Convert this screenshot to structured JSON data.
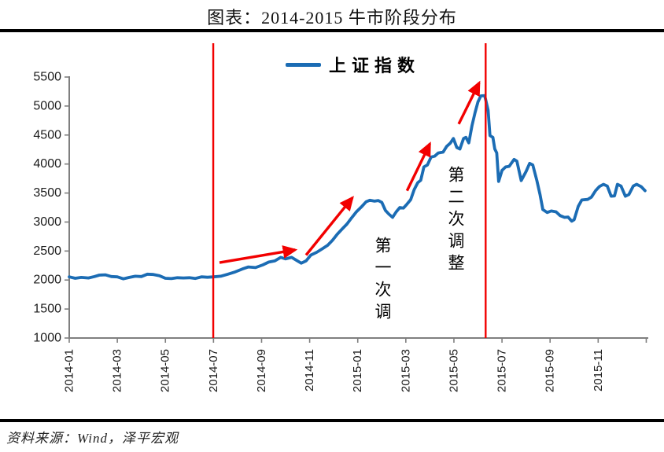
{
  "title": "图表：2014-2015 牛市阶段分布",
  "source": "资料来源：Wind，泽平宏观",
  "legend": {
    "label": "上证指数"
  },
  "colors": {
    "line_blue": "#1B6CB4",
    "marker_red": "#F20000",
    "axis_gray": "#7F7F7F",
    "tick_text": "#1A1A1A",
    "rule_black": "#000000"
  },
  "chart_data": {
    "type": "line",
    "title": "图表：2014-2015 牛市阶段分布",
    "x_unit": "months since 2014-01",
    "xlim": [
      0,
      24.1
    ],
    "ylim": [
      1000,
      5500
    ],
    "y_ticks": [
      1000,
      1500,
      2000,
      2500,
      3000,
      3500,
      4000,
      4500,
      5000,
      5500
    ],
    "x_tick_months": [
      0,
      2,
      4,
      6,
      8,
      10,
      12,
      14,
      16,
      18,
      20,
      22,
      24
    ],
    "x_tick_labels": [
      "2014-01",
      "2014-03",
      "2014-05",
      "2014-07",
      "2014-09",
      "2014-11",
      "2015-01",
      "2015-03",
      "2015-05",
      "2015-07",
      "2015-09",
      "2015-11",
      ""
    ],
    "grid": false,
    "legend_position": "top-center",
    "series": [
      {
        "name": "上证指数",
        "color": "#1B6CB4",
        "points": [
          [
            0,
            2055
          ],
          [
            0.25,
            2030
          ],
          [
            0.5,
            2045
          ],
          [
            0.8,
            2035
          ],
          [
            1.05,
            2060
          ],
          [
            1.25,
            2085
          ],
          [
            1.5,
            2090
          ],
          [
            1.75,
            2060
          ],
          [
            2.0,
            2055
          ],
          [
            2.25,
            2020
          ],
          [
            2.5,
            2045
          ],
          [
            2.75,
            2065
          ],
          [
            3.0,
            2060
          ],
          [
            3.25,
            2100
          ],
          [
            3.5,
            2095
          ],
          [
            3.75,
            2075
          ],
          [
            4.0,
            2030
          ],
          [
            4.25,
            2025
          ],
          [
            4.5,
            2040
          ],
          [
            4.75,
            2035
          ],
          [
            5.0,
            2040
          ],
          [
            5.25,
            2028
          ],
          [
            5.5,
            2055
          ],
          [
            5.75,
            2048
          ],
          [
            6.0,
            2055
          ],
          [
            6.3,
            2065
          ],
          [
            6.6,
            2100
          ],
          [
            6.9,
            2140
          ],
          [
            7.2,
            2190
          ],
          [
            7.45,
            2225
          ],
          [
            7.75,
            2215
          ],
          [
            8.05,
            2260
          ],
          [
            8.3,
            2310
          ],
          [
            8.55,
            2330
          ],
          [
            8.8,
            2390
          ],
          [
            9.0,
            2365
          ],
          [
            9.25,
            2390
          ],
          [
            9.45,
            2340
          ],
          [
            9.65,
            2290
          ],
          [
            9.85,
            2330
          ],
          [
            10.05,
            2430
          ],
          [
            10.3,
            2480
          ],
          [
            10.55,
            2545
          ],
          [
            10.75,
            2600
          ],
          [
            10.95,
            2685
          ],
          [
            11.15,
            2790
          ],
          [
            11.35,
            2880
          ],
          [
            11.55,
            2965
          ],
          [
            11.75,
            3075
          ],
          [
            11.95,
            3180
          ],
          [
            12.15,
            3260
          ],
          [
            12.35,
            3350
          ],
          [
            12.5,
            3375
          ],
          [
            12.7,
            3360
          ],
          [
            12.85,
            3370
          ],
          [
            13.0,
            3340
          ],
          [
            13.15,
            3200
          ],
          [
            13.3,
            3135
          ],
          [
            13.45,
            3080
          ],
          [
            13.6,
            3175
          ],
          [
            13.75,
            3250
          ],
          [
            13.9,
            3240
          ],
          [
            14.05,
            3310
          ],
          [
            14.2,
            3385
          ],
          [
            14.35,
            3560
          ],
          [
            14.5,
            3680
          ],
          [
            14.62,
            3720
          ],
          [
            14.75,
            3950
          ],
          [
            14.9,
            3985
          ],
          [
            15.05,
            4120
          ],
          [
            15.2,
            4135
          ],
          [
            15.35,
            4190
          ],
          [
            15.55,
            4205
          ],
          [
            15.7,
            4305
          ],
          [
            15.85,
            4360
          ],
          [
            15.98,
            4440
          ],
          [
            16.12,
            4285
          ],
          [
            16.25,
            4260
          ],
          [
            16.4,
            4440
          ],
          [
            16.5,
            4460
          ],
          [
            16.62,
            4365
          ],
          [
            16.75,
            4660
          ],
          [
            16.88,
            4890
          ],
          [
            17.0,
            5070
          ],
          [
            17.12,
            5175
          ],
          [
            17.28,
            5180
          ],
          [
            17.42,
            4930
          ],
          [
            17.5,
            4490
          ],
          [
            17.62,
            4460
          ],
          [
            17.7,
            4260
          ],
          [
            17.78,
            4190
          ],
          [
            17.86,
            3700
          ],
          [
            18.0,
            3890
          ],
          [
            18.15,
            3950
          ],
          [
            18.3,
            3960
          ],
          [
            18.5,
            4080
          ],
          [
            18.62,
            4050
          ],
          [
            18.8,
            3715
          ],
          [
            19.0,
            3870
          ],
          [
            19.15,
            4010
          ],
          [
            19.28,
            3985
          ],
          [
            19.45,
            3715
          ],
          [
            19.58,
            3475
          ],
          [
            19.7,
            3215
          ],
          [
            19.88,
            3165
          ],
          [
            20.05,
            3190
          ],
          [
            20.25,
            3175
          ],
          [
            20.42,
            3110
          ],
          [
            20.6,
            3080
          ],
          [
            20.75,
            3085
          ],
          [
            20.9,
            3015
          ],
          [
            21.0,
            3040
          ],
          [
            21.17,
            3270
          ],
          [
            21.32,
            3380
          ],
          [
            21.56,
            3390
          ],
          [
            21.72,
            3430
          ],
          [
            21.89,
            3540
          ],
          [
            22.05,
            3610
          ],
          [
            22.22,
            3650
          ],
          [
            22.38,
            3620
          ],
          [
            22.54,
            3445
          ],
          [
            22.68,
            3450
          ],
          [
            22.8,
            3650
          ],
          [
            22.95,
            3620
          ],
          [
            23.13,
            3445
          ],
          [
            23.28,
            3475
          ],
          [
            23.46,
            3620
          ],
          [
            23.6,
            3650
          ],
          [
            23.79,
            3610
          ],
          [
            23.95,
            3540
          ]
        ]
      }
    ],
    "vlines_months": [
      5.99,
      17.32
    ],
    "arrows": [
      {
        "from": [
          6.25,
          2300
        ],
        "to": [
          9.4,
          2520
        ]
      },
      {
        "from": [
          9.85,
          2430
        ],
        "to": [
          11.78,
          3420
        ]
      },
      {
        "from": [
          14.05,
          3540
        ],
        "to": [
          15.0,
          4350
        ]
      },
      {
        "from": [
          16.2,
          4690
        ],
        "to": [
          17.05,
          5400
        ]
      }
    ],
    "annotations": [
      {
        "text": "第一次调",
        "orientation": "vertical"
      },
      {
        "text": "第二次调整",
        "orientation": "vertical"
      }
    ]
  }
}
